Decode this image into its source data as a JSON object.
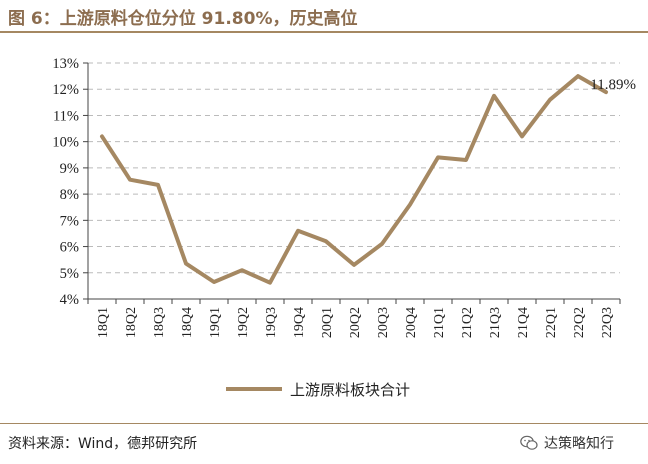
{
  "title": "图 6：上游原料仓位分位 91.80%，历史高位",
  "source": "资料来源：Wind，德邦研究所",
  "watermark": "达策略知行",
  "colors": {
    "series": "#a58862",
    "grid": "#bbbbbb",
    "axis": "#444444",
    "title": "#8c6d4f"
  },
  "chart_data": {
    "type": "line",
    "categories": [
      "18Q1",
      "18Q2",
      "18Q3",
      "18Q4",
      "19Q1",
      "19Q2",
      "19Q3",
      "19Q4",
      "20Q1",
      "20Q2",
      "20Q3",
      "20Q4",
      "21Q1",
      "21Q2",
      "21Q3",
      "21Q4",
      "22Q1",
      "22Q2",
      "22Q3"
    ],
    "series": [
      {
        "name": "上游原料板块合计",
        "values": [
          10.2,
          8.55,
          8.35,
          5.35,
          4.65,
          5.1,
          4.62,
          6.6,
          6.2,
          5.3,
          6.1,
          7.6,
          9.4,
          9.3,
          11.75,
          10.2,
          11.6,
          12.5,
          11.89
        ]
      }
    ],
    "yticks": [
      "4%",
      "5%",
      "6%",
      "7%",
      "8%",
      "9%",
      "10%",
      "11%",
      "12%",
      "13%"
    ],
    "ylim": [
      4,
      13
    ],
    "grid": true,
    "legend_position": "bottom",
    "annotation": "11.89%"
  }
}
